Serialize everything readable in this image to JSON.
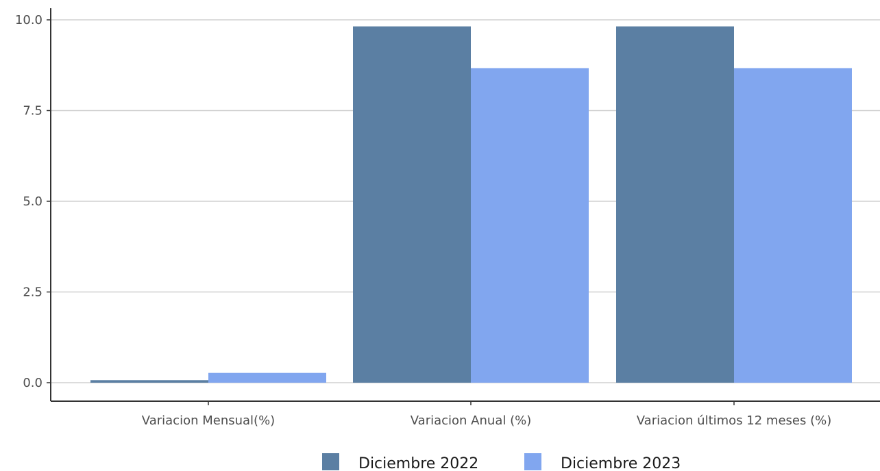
{
  "chart_data": {
    "type": "bar",
    "title": "",
    "xlabel": "",
    "ylabel": "",
    "categories": [
      "Variacion Mensual(%)",
      "Variacion Anual (%)",
      "Variacion últimos 12 meses (%)"
    ],
    "series": [
      {
        "name": "Diciembre 2022",
        "color": "#5b7fa3",
        "values": [
          0.07,
          9.82,
          9.82
        ]
      },
      {
        "name": "Diciembre 2023",
        "color": "#81a6ef",
        "values": [
          0.27,
          8.67,
          8.67
        ]
      }
    ],
    "ylim": [
      -0.5,
      10.35
    ],
    "yticks": [
      "0.0",
      "2.5",
      "5.0",
      "7.5",
      "10.0"
    ],
    "grid": "horizontal",
    "legend_position": "bottom"
  }
}
